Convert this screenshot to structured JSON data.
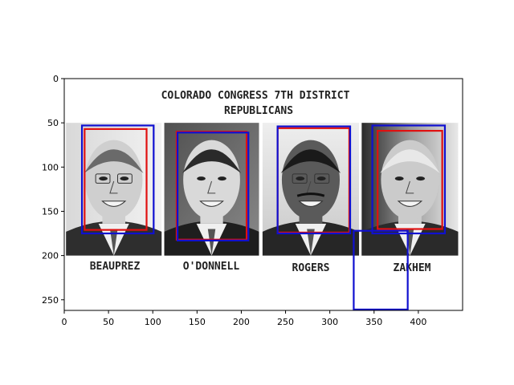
{
  "figure": {
    "title": "",
    "xlabel": "",
    "ylabel": "",
    "x_ticks": [
      0,
      50,
      100,
      150,
      200,
      250,
      300,
      350,
      400
    ],
    "y_ticks": [
      0,
      50,
      100,
      150,
      200,
      250
    ],
    "xlim": [
      0,
      450
    ],
    "ylim_inverted": [
      262,
      0
    ]
  },
  "image": {
    "width": 450,
    "height": 262,
    "heading_line1": "COLORADO CONGRESS 7TH DISTRICT",
    "heading_line2": "REPUBLICANS",
    "portraits": [
      {
        "name": "BEAUPREZ",
        "extent": [
          2,
          110,
          50,
          200
        ]
      },
      {
        "name": "O'DONNELL",
        "extent": [
          113,
          220,
          50,
          200
        ]
      },
      {
        "name": "ROGERS",
        "extent": [
          224,
          333,
          50,
          200
        ]
      },
      {
        "name": "ZAKHEM",
        "extent": [
          336,
          445,
          50,
          200
        ]
      }
    ]
  },
  "boxes": {
    "red": [
      {
        "x0": 23,
        "y0": 57,
        "x1": 93,
        "y1": 171
      },
      {
        "x0": 127,
        "y0": 60,
        "x1": 206,
        "y1": 182
      },
      {
        "x0": 241,
        "y0": 56,
        "x1": 322,
        "y1": 174
      },
      {
        "x0": 354,
        "y0": 59,
        "x1": 427,
        "y1": 170
      }
    ],
    "blue": [
      {
        "x0": 20,
        "y0": 53,
        "x1": 101,
        "y1": 175
      },
      {
        "x0": 128,
        "y0": 61,
        "x1": 208,
        "y1": 183
      },
      {
        "x0": 241,
        "y0": 54,
        "x1": 323,
        "y1": 175
      },
      {
        "x0": 348,
        "y0": 53,
        "x1": 430,
        "y1": 175
      },
      {
        "x0": 327,
        "y0": 172,
        "x1": 388,
        "y1": 261
      }
    ],
    "colors": {
      "red": "#e01010",
      "blue": "#1010d0"
    }
  }
}
